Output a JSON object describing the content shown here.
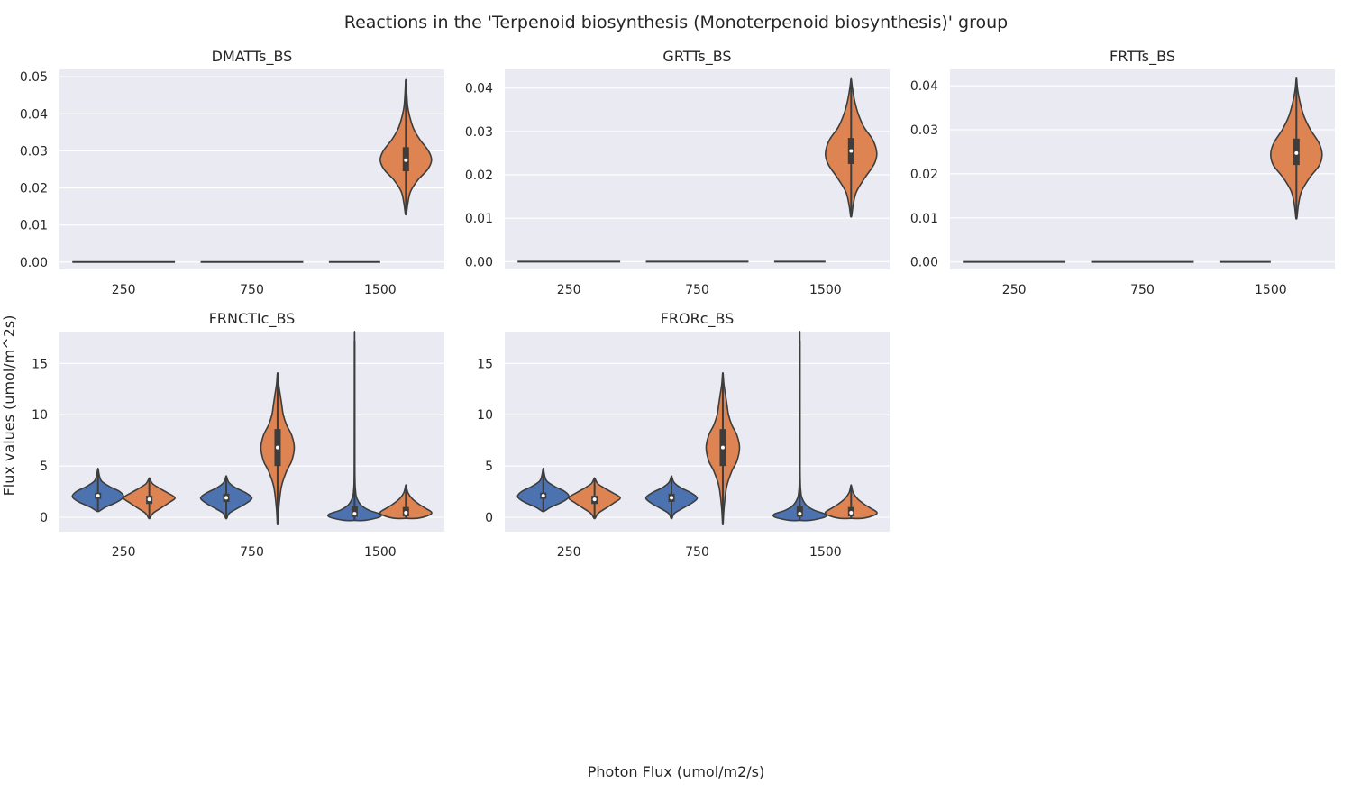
{
  "title": "Reactions in the 'Terpenoid biosynthesis (Monoterpenoid biosynthesis)' group",
  "xlabel": "Photon Flux (umol/m2/s)",
  "ylabel": "Flux values (umol/m^2s)",
  "colors": {
    "series0": "#4c72b0",
    "series1": "#dd8452",
    "panel_bg": "#eaeaf2",
    "grid": "#ffffff",
    "inner": "#3d3d3d"
  },
  "chart_data": [
    {
      "type": "violin",
      "title": "DMATTs_BS",
      "categories": [
        "250",
        "750",
        "1500"
      ],
      "ylim": [
        -0.002,
        0.052
      ],
      "yticks": [
        "0.00",
        "0.01",
        "0.02",
        "0.03",
        "0.04",
        "0.05"
      ],
      "ytick_values": [
        0,
        0.01,
        0.02,
        0.03,
        0.04,
        0.05
      ],
      "groups": [
        {
          "category": "250",
          "series": 0,
          "shape": "flat",
          "value": 0
        },
        {
          "category": "750",
          "series": 0,
          "shape": "flat",
          "value": 0
        },
        {
          "category": "1500",
          "series": 0,
          "shape": "flat",
          "value": 0,
          "offset": -0.2
        },
        {
          "category": "1500",
          "series": 1,
          "offset": 0.2,
          "min": 0.013,
          "max": 0.049,
          "q1": 0.0245,
          "median": 0.0275,
          "q3": 0.031,
          "profile": [
            [
              0.013,
              0.02
            ],
            [
              0.016,
              0.08
            ],
            [
              0.019,
              0.18
            ],
            [
              0.022,
              0.45
            ],
            [
              0.025,
              0.85
            ],
            [
              0.0275,
              1.0
            ],
            [
              0.03,
              0.88
            ],
            [
              0.033,
              0.55
            ],
            [
              0.036,
              0.3
            ],
            [
              0.039,
              0.16
            ],
            [
              0.042,
              0.07
            ],
            [
              0.046,
              0.03
            ],
            [
              0.049,
              0.01
            ]
          ]
        }
      ]
    },
    {
      "type": "violin",
      "title": "GRTTs_BS",
      "categories": [
        "250",
        "750",
        "1500"
      ],
      "ylim": [
        -0.0018,
        0.0443
      ],
      "yticks": [
        "0.00",
        "0.01",
        "0.02",
        "0.03",
        "0.04"
      ],
      "ytick_values": [
        0,
        0.01,
        0.02,
        0.03,
        0.04
      ],
      "groups": [
        {
          "category": "250",
          "series": 0,
          "shape": "flat",
          "value": 0
        },
        {
          "category": "750",
          "series": 0,
          "shape": "flat",
          "value": 0
        },
        {
          "category": "1500",
          "series": 0,
          "shape": "flat",
          "value": 0,
          "offset": -0.2
        },
        {
          "category": "1500",
          "series": 1,
          "offset": 0.2,
          "min": 0.0105,
          "max": 0.042,
          "q1": 0.0225,
          "median": 0.0255,
          "q3": 0.0285,
          "profile": [
            [
              0.0105,
              0.02
            ],
            [
              0.013,
              0.08
            ],
            [
              0.016,
              0.2
            ],
            [
              0.019,
              0.5
            ],
            [
              0.0225,
              0.9
            ],
            [
              0.025,
              1.0
            ],
            [
              0.028,
              0.85
            ],
            [
              0.031,
              0.5
            ],
            [
              0.034,
              0.28
            ],
            [
              0.037,
              0.14
            ],
            [
              0.04,
              0.05
            ],
            [
              0.042,
              0.01
            ]
          ]
        }
      ]
    },
    {
      "type": "violin",
      "title": "FRTTs_BS",
      "categories": [
        "250",
        "750",
        "1500"
      ],
      "ylim": [
        -0.0017,
        0.0437
      ],
      "yticks": [
        "0.00",
        "0.01",
        "0.02",
        "0.03",
        "0.04"
      ],
      "ytick_values": [
        0,
        0.01,
        0.02,
        0.03,
        0.04
      ],
      "groups": [
        {
          "category": "250",
          "series": 0,
          "shape": "flat",
          "value": 0
        },
        {
          "category": "750",
          "series": 0,
          "shape": "flat",
          "value": 0
        },
        {
          "category": "1500",
          "series": 0,
          "shape": "flat",
          "value": 0,
          "offset": -0.2
        },
        {
          "category": "1500",
          "series": 1,
          "offset": 0.2,
          "min": 0.01,
          "max": 0.0415,
          "q1": 0.022,
          "median": 0.0247,
          "q3": 0.028,
          "profile": [
            [
              0.01,
              0.02
            ],
            [
              0.013,
              0.08
            ],
            [
              0.016,
              0.2
            ],
            [
              0.019,
              0.5
            ],
            [
              0.022,
              0.9
            ],
            [
              0.0245,
              1.0
            ],
            [
              0.027,
              0.88
            ],
            [
              0.03,
              0.55
            ],
            [
              0.033,
              0.3
            ],
            [
              0.036,
              0.15
            ],
            [
              0.039,
              0.05
            ],
            [
              0.0415,
              0.01
            ]
          ]
        }
      ]
    },
    {
      "type": "violin",
      "title": "FRNCTIc_BS",
      "categories": [
        "250",
        "750",
        "1500"
      ],
      "ylim": [
        -1.4,
        18.1
      ],
      "yticks": [
        "0",
        "5",
        "10",
        "15"
      ],
      "ytick_values": [
        0,
        5,
        10,
        15
      ],
      "groups": [
        {
          "category": "250",
          "series": 0,
          "offset": -0.2,
          "min": 0.6,
          "max": 4.7,
          "q1": 1.8,
          "median": 2.1,
          "q3": 2.4,
          "profile": [
            [
              0.6,
              0.05
            ],
            [
              1.0,
              0.3
            ],
            [
              1.5,
              0.75
            ],
            [
              2.0,
              1.0
            ],
            [
              2.5,
              0.85
            ],
            [
              3.0,
              0.45
            ],
            [
              3.5,
              0.15
            ],
            [
              4.0,
              0.06
            ],
            [
              4.7,
              0.01
            ]
          ]
        },
        {
          "category": "250",
          "series": 1,
          "offset": 0.2,
          "min": -0.1,
          "max": 3.8,
          "q1": 1.3,
          "median": 1.75,
          "q3": 2.1,
          "profile": [
            [
              -0.1,
              0.02
            ],
            [
              0.4,
              0.15
            ],
            [
              0.9,
              0.45
            ],
            [
              1.4,
              0.75
            ],
            [
              1.9,
              1.0
            ],
            [
              2.4,
              0.7
            ],
            [
              2.9,
              0.35
            ],
            [
              3.3,
              0.12
            ],
            [
              3.8,
              0.01
            ]
          ]
        },
        {
          "category": "750",
          "series": 0,
          "offset": -0.2,
          "min": -0.1,
          "max": 4.0,
          "q1": 1.5,
          "median": 1.9,
          "q3": 2.3,
          "profile": [
            [
              -0.1,
              0.02
            ],
            [
              0.4,
              0.12
            ],
            [
              0.9,
              0.45
            ],
            [
              1.4,
              0.8
            ],
            [
              1.9,
              1.0
            ],
            [
              2.4,
              0.75
            ],
            [
              2.9,
              0.35
            ],
            [
              3.4,
              0.1
            ],
            [
              4.0,
              0.01
            ]
          ]
        },
        {
          "category": "750",
          "series": 1,
          "offset": 0.2,
          "min": -0.6,
          "max": 14.0,
          "q1": 5.0,
          "median": 6.8,
          "q3": 8.6,
          "profile": [
            [
              -0.6,
              0.01
            ],
            [
              1.0,
              0.05
            ],
            [
              3.0,
              0.15
            ],
            [
              4.5,
              0.35
            ],
            [
              5.5,
              0.55
            ],
            [
              6.8,
              0.65
            ],
            [
              8.0,
              0.55
            ],
            [
              9.0,
              0.35
            ],
            [
              10.0,
              0.22
            ],
            [
              11.0,
              0.16
            ],
            [
              12.0,
              0.1
            ],
            [
              13.0,
              0.04
            ],
            [
              14.0,
              0.01
            ]
          ]
        },
        {
          "category": "1500",
          "series": 0,
          "offset": -0.2,
          "min": -0.3,
          "max": 17.2,
          "q1": 0.05,
          "median": 0.35,
          "q3": 1.1,
          "profile": [
            [
              -0.3,
              0.4
            ],
            [
              0.0,
              0.95
            ],
            [
              0.3,
              1.0
            ],
            [
              0.7,
              0.55
            ],
            [
              1.2,
              0.25
            ],
            [
              1.8,
              0.1
            ],
            [
              2.5,
              0.04
            ],
            [
              5.0,
              0.01
            ],
            [
              17.2,
              0.003
            ]
          ]
        },
        {
          "category": "1500",
          "series": 1,
          "offset": 0.2,
          "min": -0.1,
          "max": 3.1,
          "q1": 0.1,
          "median": 0.45,
          "q3": 1.0,
          "profile": [
            [
              -0.1,
              0.45
            ],
            [
              0.2,
              0.9
            ],
            [
              0.5,
              1.0
            ],
            [
              0.9,
              0.75
            ],
            [
              1.3,
              0.5
            ],
            [
              1.8,
              0.25
            ],
            [
              2.4,
              0.08
            ],
            [
              3.1,
              0.01
            ]
          ]
        }
      ]
    },
    {
      "type": "violin",
      "title": "FRORc_BS",
      "categories": [
        "250",
        "750",
        "1500"
      ],
      "ylim": [
        -1.4,
        18.1
      ],
      "yticks": [
        "0",
        "5",
        "10",
        "15"
      ],
      "ytick_values": [
        0,
        5,
        10,
        15
      ],
      "groups": [
        {
          "category": "250",
          "series": 0,
          "offset": -0.2,
          "min": 0.6,
          "max": 4.7,
          "q1": 1.8,
          "median": 2.1,
          "q3": 2.4,
          "profile": [
            [
              0.6,
              0.05
            ],
            [
              1.0,
              0.3
            ],
            [
              1.5,
              0.75
            ],
            [
              2.0,
              1.0
            ],
            [
              2.5,
              0.85
            ],
            [
              3.0,
              0.45
            ],
            [
              3.5,
              0.15
            ],
            [
              4.0,
              0.06
            ],
            [
              4.7,
              0.01
            ]
          ]
        },
        {
          "category": "250",
          "series": 1,
          "offset": 0.2,
          "min": -0.1,
          "max": 3.8,
          "q1": 1.3,
          "median": 1.75,
          "q3": 2.1,
          "profile": [
            [
              -0.1,
              0.02
            ],
            [
              0.4,
              0.15
            ],
            [
              0.9,
              0.45
            ],
            [
              1.4,
              0.75
            ],
            [
              1.9,
              1.0
            ],
            [
              2.4,
              0.7
            ],
            [
              2.9,
              0.35
            ],
            [
              3.3,
              0.12
            ],
            [
              3.8,
              0.01
            ]
          ]
        },
        {
          "category": "750",
          "series": 0,
          "offset": -0.2,
          "min": -0.1,
          "max": 4.0,
          "q1": 1.5,
          "median": 1.9,
          "q3": 2.3,
          "profile": [
            [
              -0.1,
              0.02
            ],
            [
              0.4,
              0.12
            ],
            [
              0.9,
              0.45
            ],
            [
              1.4,
              0.8
            ],
            [
              1.9,
              1.0
            ],
            [
              2.4,
              0.75
            ],
            [
              2.9,
              0.35
            ],
            [
              3.4,
              0.1
            ],
            [
              4.0,
              0.01
            ]
          ]
        },
        {
          "category": "750",
          "series": 1,
          "offset": 0.2,
          "min": -0.6,
          "max": 14.0,
          "q1": 5.0,
          "median": 6.8,
          "q3": 8.6,
          "profile": [
            [
              -0.6,
              0.01
            ],
            [
              1.0,
              0.05
            ],
            [
              3.0,
              0.15
            ],
            [
              4.5,
              0.35
            ],
            [
              5.5,
              0.55
            ],
            [
              6.8,
              0.65
            ],
            [
              8.0,
              0.55
            ],
            [
              9.0,
              0.35
            ],
            [
              10.0,
              0.22
            ],
            [
              11.0,
              0.16
            ],
            [
              12.0,
              0.1
            ],
            [
              13.0,
              0.04
            ],
            [
              14.0,
              0.01
            ]
          ]
        },
        {
          "category": "1500",
          "series": 0,
          "offset": -0.2,
          "min": -0.3,
          "max": 17.2,
          "q1": 0.05,
          "median": 0.35,
          "q3": 1.1,
          "profile": [
            [
              -0.3,
              0.4
            ],
            [
              0.0,
              0.95
            ],
            [
              0.3,
              1.0
            ],
            [
              0.7,
              0.55
            ],
            [
              1.2,
              0.25
            ],
            [
              1.8,
              0.1
            ],
            [
              2.5,
              0.04
            ],
            [
              5.0,
              0.01
            ],
            [
              17.2,
              0.003
            ]
          ]
        },
        {
          "category": "1500",
          "series": 1,
          "offset": 0.2,
          "min": -0.1,
          "max": 3.1,
          "q1": 0.1,
          "median": 0.45,
          "q3": 1.0,
          "profile": [
            [
              -0.1,
              0.45
            ],
            [
              0.2,
              0.9
            ],
            [
              0.5,
              1.0
            ],
            [
              0.9,
              0.75
            ],
            [
              1.3,
              0.5
            ],
            [
              1.8,
              0.25
            ],
            [
              2.4,
              0.08
            ],
            [
              3.1,
              0.01
            ]
          ]
        }
      ]
    }
  ]
}
